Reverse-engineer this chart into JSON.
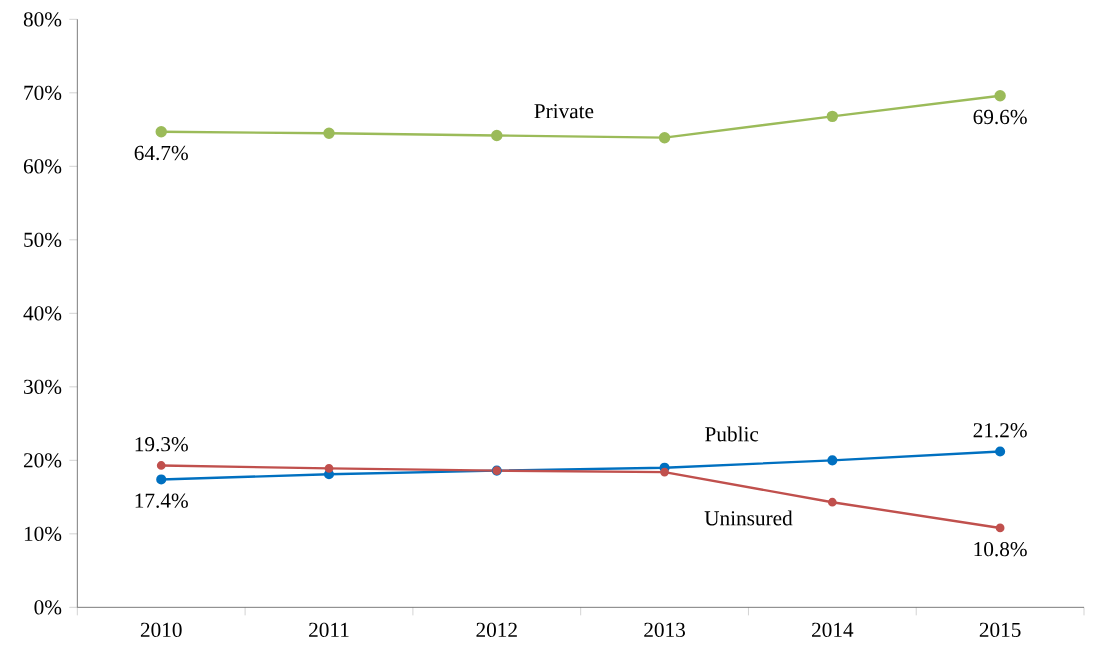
{
  "chart_data": {
    "type": "line",
    "categories": [
      "2010",
      "2011",
      "2012",
      "2013",
      "2014",
      "2015"
    ],
    "series": [
      {
        "name": "Private",
        "color": "#9bbb59",
        "values": [
          64.7,
          64.5,
          64.2,
          63.9,
          66.8,
          69.6
        ],
        "value_labels": [
          "64.7%",
          null,
          null,
          null,
          null,
          "69.6%"
        ]
      },
      {
        "name": "Public",
        "color": "#0070c0",
        "values": [
          17.4,
          18.1,
          18.6,
          19.0,
          20.0,
          21.2
        ],
        "value_labels": [
          "17.4%",
          null,
          null,
          null,
          null,
          "21.2%"
        ]
      },
      {
        "name": "Uninsured",
        "color": "#c0504d",
        "values": [
          19.3,
          18.9,
          18.6,
          18.4,
          14.3,
          10.8
        ],
        "value_labels": [
          "19.3%",
          null,
          null,
          null,
          null,
          "10.8%"
        ]
      }
    ],
    "ylim": [
      0,
      80
    ],
    "yticks": [
      {
        "value": 0,
        "label": "0%"
      },
      {
        "value": 10,
        "label": "10%"
      },
      {
        "value": 20,
        "label": "20%"
      },
      {
        "value": 30,
        "label": "30%"
      },
      {
        "value": 40,
        "label": "40%"
      },
      {
        "value": 50,
        "label": "50%"
      },
      {
        "value": 60,
        "label": "60%"
      },
      {
        "value": 70,
        "label": "70%"
      },
      {
        "value": 80,
        "label": "80%"
      }
    ],
    "grid": false,
    "marker": "circle",
    "line_style": "solid"
  }
}
